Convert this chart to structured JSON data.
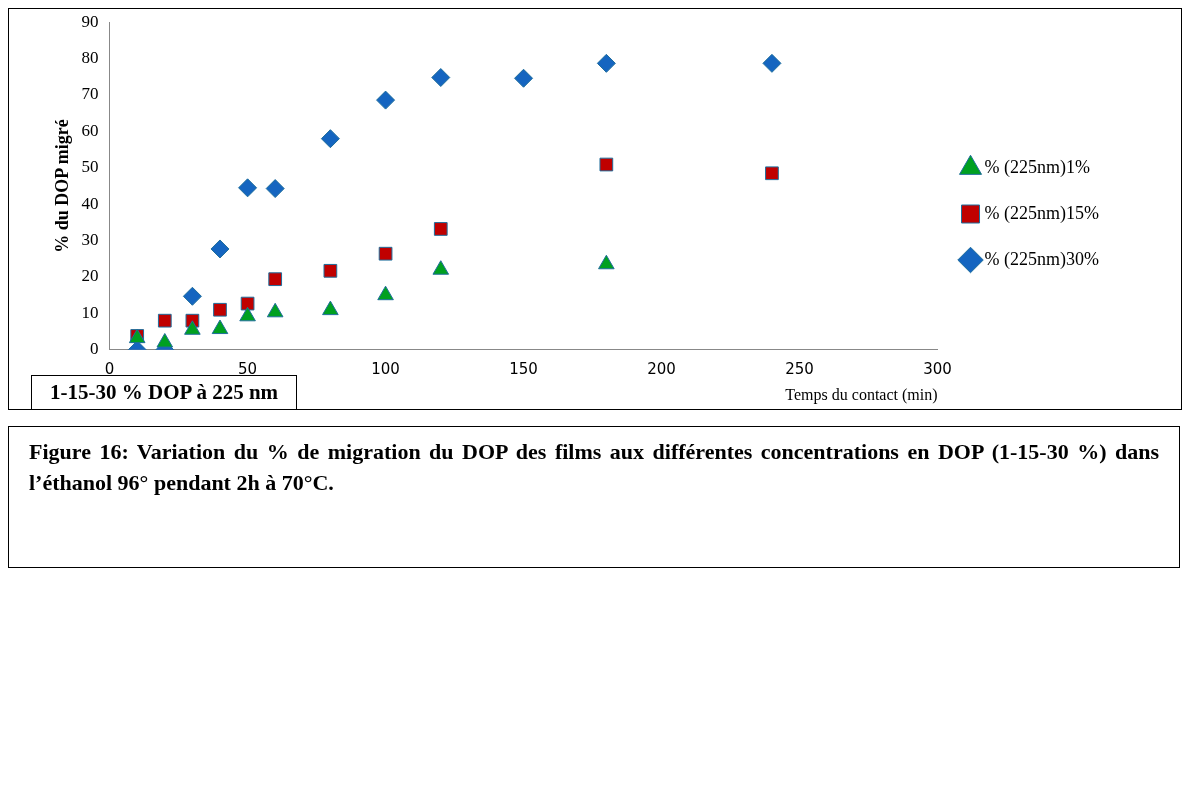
{
  "chart_data": {
    "type": "scatter",
    "xlabel": "Temps du contact (min)",
    "ylabel": "% du DOP migré",
    "xlim": [
      0,
      300
    ],
    "xticks": [
      0,
      50,
      100,
      150,
      200,
      250,
      300
    ],
    "ylim": [
      0,
      90
    ],
    "yticks": [
      0,
      10,
      20,
      30,
      40,
      50,
      60,
      70,
      80,
      90
    ],
    "grid": false,
    "legend": "right",
    "annotations": [
      "1-15-30 % DOP à 225 nm",
      "Figure 16: Variation du % de migration du DOP des films aux différentes concentrations en DOP (1-15-30 %)  dans l’éthanol 96° pendant 2h à 70°C."
    ],
    "series": [
      {
        "name": "% (225nm)30%",
        "color": "#1565c0",
        "marker": "diamond",
        "x": [
          10,
          20,
          30,
          40,
          50,
          60,
          80,
          100,
          120,
          150,
          180,
          240
        ],
        "values": [
          0,
          0,
          14.7,
          27.7,
          44.5,
          44.3,
          58,
          68.6,
          74.8,
          74.6,
          78.7,
          78.7
        ]
      },
      {
        "name": "% (225nm)15%",
        "color": "#c00000",
        "marker": "square",
        "x": [
          10,
          20,
          30,
          40,
          50,
          60,
          80,
          100,
          120,
          180,
          240
        ],
        "values": [
          3.8,
          8,
          8,
          11,
          12.7,
          19.4,
          21.7,
          26.4,
          33.2,
          50.9,
          48.5
        ]
      },
      {
        "name": "% (225nm)1%",
        "color": "#00a020",
        "marker": "triangle",
        "x": [
          10,
          20,
          30,
          40,
          50,
          60,
          80,
          100,
          120,
          180
        ],
        "values": [
          3.2,
          2,
          5.5,
          5.7,
          9.2,
          10.3,
          10.9,
          15,
          22,
          23.5
        ]
      }
    ]
  }
}
